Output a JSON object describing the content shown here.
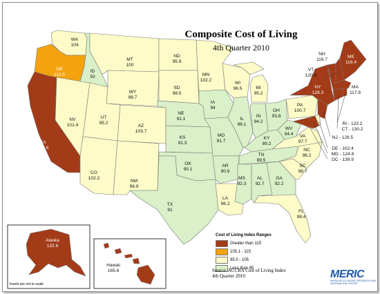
{
  "map": {
    "title": "Composite Cost of Living",
    "subtitle": "4th Quarter 2010",
    "colors": {
      "greater_than_115": "#a33b18",
      "range_105_115": "#f4a30f",
      "range_95_105": "#fdfbc8",
      "less_than_95": "#d9f0c8",
      "border": "#777777"
    },
    "legend": {
      "title": "Cost of Living Index Ranges",
      "items": [
        {
          "label": "Greater than 115",
          "color": "#a33b18"
        },
        {
          "label": "105.1 - 115",
          "color": "#f4a30f"
        },
        {
          "label": "95.0 - 105",
          "color": "#fdfbc8"
        },
        {
          "label": "Less than 95",
          "color": "#d9f0c8"
        }
      ]
    },
    "source_line1": "Source: ACCRA Cost of Living Index",
    "source_line2": "4th Quarter 2010",
    "inset_note": "Insets are not to scale",
    "logo": {
      "text": "MERIC",
      "tagline": "MISSOURI ECONOMIC RESEARCH AND INFORMATION CENTER"
    },
    "states": [
      {
        "abbr": "WA",
        "value": "104"
      },
      {
        "abbr": "OR",
        "value": "110.5"
      },
      {
        "abbr": "CA",
        "value": "132.6"
      },
      {
        "abbr": "ID",
        "value": "93"
      },
      {
        "abbr": "NV",
        "value": "101.4"
      },
      {
        "abbr": "MT",
        "value": "100"
      },
      {
        "abbr": "WY",
        "value": "98.7"
      },
      {
        "abbr": "UT",
        "value": "95.2"
      },
      {
        "abbr": "AZ",
        "value": "103.7"
      },
      {
        "abbr": "CO",
        "value": "102.2"
      },
      {
        "abbr": "NM",
        "value": "98.9"
      },
      {
        "abbr": "ND",
        "value": "95.9"
      },
      {
        "abbr": "SD",
        "value": "98.5"
      },
      {
        "abbr": "NE",
        "value": "91.1"
      },
      {
        "abbr": "KS",
        "value": "91.3"
      },
      {
        "abbr": "OK",
        "value": "90.1"
      },
      {
        "abbr": "TX",
        "value": "91"
      },
      {
        "abbr": "MN",
        "value": "102.2"
      },
      {
        "abbr": "IA",
        "value": "94"
      },
      {
        "abbr": "MO",
        "value": "91.7"
      },
      {
        "abbr": "AR",
        "value": "90.6"
      },
      {
        "abbr": "LA",
        "value": "96.2"
      },
      {
        "abbr": "WI",
        "value": "96.5"
      },
      {
        "abbr": "IL",
        "value": "96.1"
      },
      {
        "abbr": "MI",
        "value": "95.2"
      },
      {
        "abbr": "IN",
        "value": "94.2"
      },
      {
        "abbr": "OH",
        "value": "93.8"
      },
      {
        "abbr": "KY",
        "value": "89.2"
      },
      {
        "abbr": "TN",
        "value": "89.5"
      },
      {
        "abbr": "MS",
        "value": "92.3"
      },
      {
        "abbr": "AL",
        "value": "92.7"
      },
      {
        "abbr": "GA",
        "value": "92.2"
      },
      {
        "abbr": "FL",
        "value": "98.4"
      },
      {
        "abbr": "SC",
        "value": "98.7"
      },
      {
        "abbr": "NC",
        "value": "96.2"
      },
      {
        "abbr": "VA",
        "value": "97.7"
      },
      {
        "abbr": "WV",
        "value": "94.4"
      },
      {
        "abbr": "PA",
        "value": "100.7"
      },
      {
        "abbr": "NY",
        "value": "128.3"
      },
      {
        "abbr": "VT",
        "value": "120.4"
      },
      {
        "abbr": "NH",
        "value": "116.7"
      },
      {
        "abbr": "ME",
        "value": "116.4"
      },
      {
        "abbr": "MA",
        "value": "117.8"
      },
      {
        "abbr": "RI",
        "value": "123.2"
      },
      {
        "abbr": "CT",
        "value": "130.2"
      },
      {
        "abbr": "NJ",
        "value": "128.5"
      },
      {
        "abbr": "DE",
        "value": "102.4"
      },
      {
        "abbr": "MD",
        "value": "124.8"
      },
      {
        "abbr": "DC",
        "value": "139.9"
      },
      {
        "abbr": "Alaska",
        "value": "132.6"
      },
      {
        "abbr": "Hawaii",
        "value": "165.6"
      }
    ]
  }
}
